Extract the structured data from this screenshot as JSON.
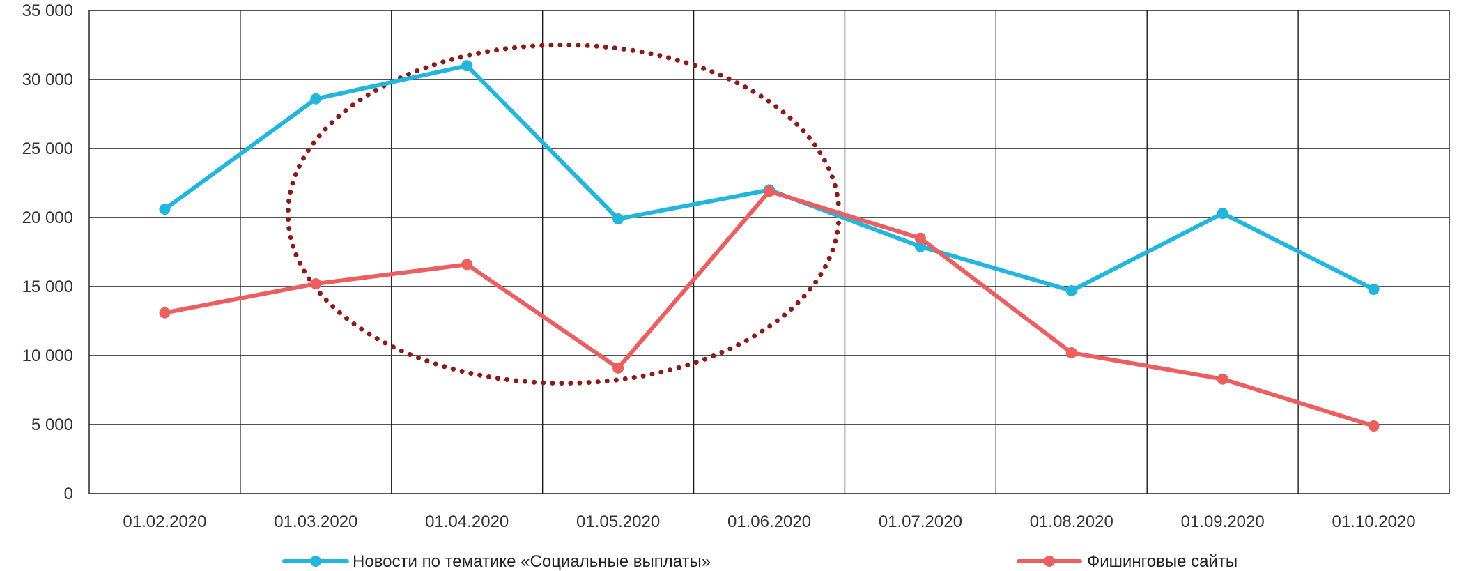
{
  "chart_data": {
    "type": "line",
    "categories": [
      "01.02.2020",
      "01.03.2020",
      "01.04.2020",
      "01.05.2020",
      "01.06.2020",
      "01.07.2020",
      "01.08.2020",
      "01.09.2020",
      "01.10.2020"
    ],
    "y_ticks": [
      "0",
      "5 000",
      "10 000",
      "15 000",
      "20 000",
      "25 000",
      "30 000",
      "35 000"
    ],
    "ylim": [
      0,
      35000
    ],
    "grid": true,
    "legend_position": "bottom",
    "series": [
      {
        "name": "Новости по тематике «Социальные выплаты»",
        "color": "#22b6dc",
        "values": [
          20600,
          28600,
          31000,
          19900,
          22000,
          17900,
          14700,
          20300,
          14800
        ]
      },
      {
        "name": "Фишинговые сайты",
        "color": "#eb5f61",
        "values": [
          13100,
          15200,
          16600,
          9100,
          21900,
          18500,
          10200,
          8300,
          4900
        ]
      }
    ],
    "annotation": {
      "shape": "dotted-ellipse",
      "color": "#8b1a1a",
      "x_range": [
        "01.03.2020",
        "01.06.2020"
      ],
      "y_range": [
        8000,
        32500
      ]
    }
  }
}
